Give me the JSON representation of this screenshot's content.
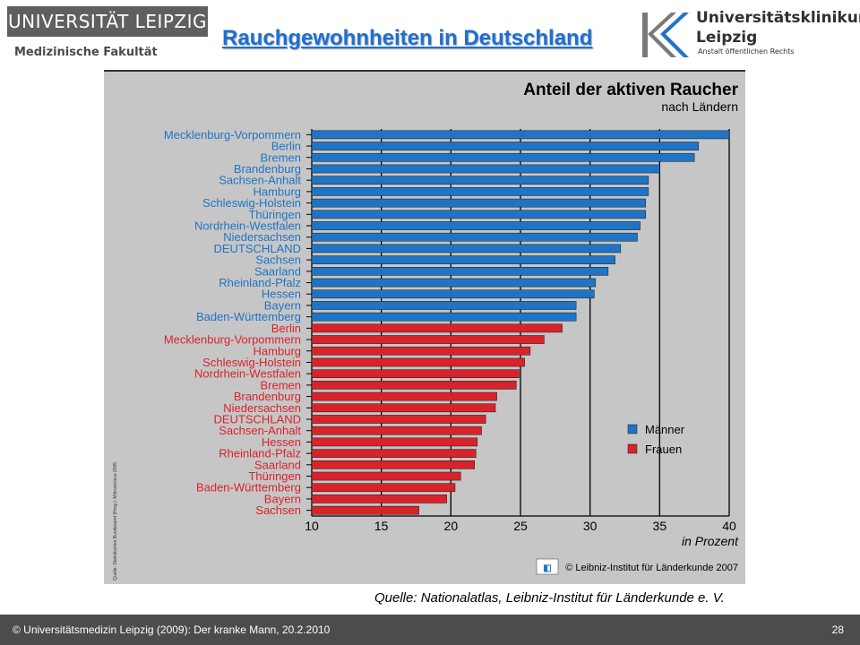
{
  "header": {
    "university": "UNIVERSITÄT LEIPZIG",
    "faculty": "Medizinische Fakultät",
    "slide_title": "Rauchgewohnheiten in Deutschland",
    "clinic_name": "Universitätsklinikum",
    "clinic_city": "Leipzig",
    "clinic_legal": "Anstalt öffentlichen Rechts"
  },
  "chart_data": {
    "type": "bar",
    "orientation": "horizontal",
    "title": "Anteil der aktiven Raucher",
    "subtitle": "nach Ländern",
    "xlabel": "in Prozent",
    "xlim": [
      10,
      40
    ],
    "xticks": [
      10,
      15,
      20,
      25,
      30,
      35,
      40
    ],
    "grid": "vertical",
    "legend_position": "bottom-right",
    "series": [
      {
        "name": "Männer",
        "color": "#1f74c6",
        "categories": [
          "Mecklenburg-Vorpommern",
          "Berlin",
          "Bremen",
          "Brandenburg",
          "Sachsen-Anhalt",
          "Hamburg",
          "Schleswig-Holstein",
          "Thüringen",
          "Nordrhein-Westfalen",
          "Niedersachsen",
          "DEUTSCHLAND",
          "Sachsen",
          "Saarland",
          "Rheinland-Pfalz",
          "Hessen",
          "Bayern",
          "Baden-Württemberg"
        ],
        "values": [
          40.0,
          37.8,
          37.5,
          35.0,
          34.2,
          34.2,
          34.0,
          34.0,
          33.6,
          33.4,
          32.2,
          31.8,
          31.3,
          30.4,
          30.3,
          29.0,
          29.0
        ]
      },
      {
        "name": "Frauen",
        "color": "#d9232a",
        "categories": [
          "Berlin",
          "Mecklenburg-Vorpommern",
          "Hamburg",
          "Schleswig-Holstein",
          "Nordrhein-Westfalen",
          "Bremen",
          "Brandenburg",
          "Niedersachsen",
          "DEUTSCHLAND",
          "Sachsen-Anhalt",
          "Hessen",
          "Rheinland-Pfalz",
          "Saarland",
          "Thüringen",
          "Baden-Württemberg",
          "Bayern",
          "Sachsen"
        ],
        "values": [
          28.0,
          26.7,
          25.7,
          25.3,
          24.9,
          24.7,
          23.3,
          23.2,
          22.5,
          22.2,
          21.9,
          21.8,
          21.7,
          20.7,
          20.3,
          19.7,
          17.7
        ]
      }
    ],
    "side_note": "Quelle: Statistisches Bundesamt (Hrsg.): Mikrozensus 2005",
    "copyright": "© Leibniz-Institut für Länderkunde 2007"
  },
  "source_caption": "Quelle: Nationalatlas, Leibniz-Institut für Länderkunde e. V.",
  "footer": {
    "text": "© Universitätsmedizin Leipzig (2009):  Der kranke Mann, 20.2.2010",
    "page": "28"
  },
  "colors": {
    "chart_background": "#c6c6c6",
    "men": "#1f74c6",
    "women": "#d9232a",
    "title_blue": "#1f6fd1"
  }
}
